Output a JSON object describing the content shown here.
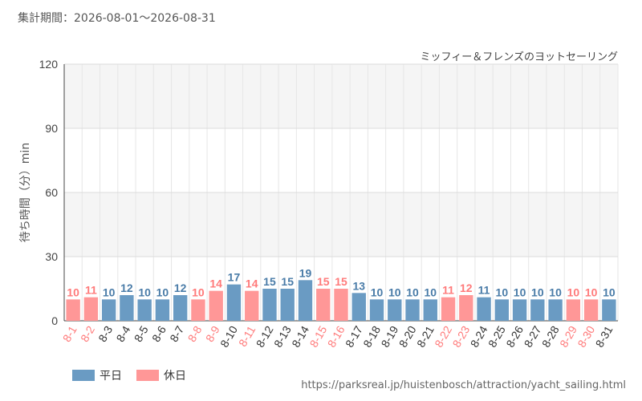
{
  "period": "集計期間：2026-08-01～2026-08-31",
  "attraction": "ミッフィー＆フレンズのヨットセーリング",
  "url": "https://parksreal.jp/huistenbosch/attraction/yacht_sailing.html",
  "legend": {
    "weekday": "平日",
    "holiday": "休日"
  },
  "colors": {
    "weekday": "#6a9bc3",
    "holiday": "#ff9797",
    "weekday_label": "#4a7ca8",
    "holiday_label": "#ff7a7a"
  },
  "chart_data": {
    "type": "bar",
    "ylabel": "待ち時間（分）min",
    "ylim": [
      0,
      120
    ],
    "yticks": [
      0,
      30,
      60,
      90,
      120
    ],
    "categories": [
      "8-1",
      "8-2",
      "8-3",
      "8-4",
      "8-5",
      "8-6",
      "8-7",
      "8-8",
      "8-9",
      "8-10",
      "8-11",
      "8-12",
      "8-13",
      "8-14",
      "8-15",
      "8-16",
      "8-17",
      "8-18",
      "8-19",
      "8-20",
      "8-21",
      "8-22",
      "8-23",
      "8-24",
      "8-25",
      "8-26",
      "8-27",
      "8-28",
      "8-29",
      "8-30",
      "8-31"
    ],
    "values": [
      10,
      11,
      10,
      12,
      10,
      10,
      12,
      10,
      14,
      17,
      14,
      15,
      15,
      19,
      15,
      15,
      13,
      10,
      10,
      10,
      10,
      11,
      12,
      11,
      10,
      10,
      10,
      10,
      10,
      10,
      10
    ],
    "holiday": [
      true,
      true,
      false,
      false,
      false,
      false,
      false,
      true,
      true,
      false,
      true,
      false,
      false,
      false,
      true,
      true,
      false,
      false,
      false,
      false,
      false,
      true,
      true,
      false,
      false,
      false,
      false,
      false,
      true,
      true,
      false
    ]
  }
}
